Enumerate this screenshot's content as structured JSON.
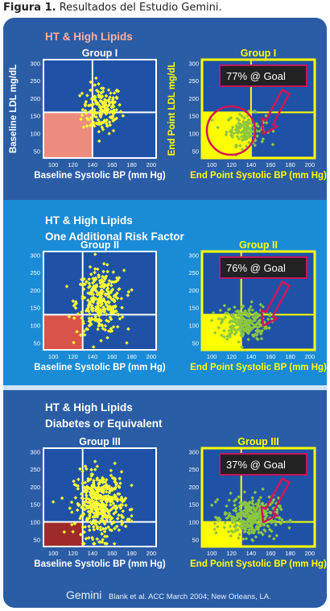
{
  "caption": {
    "label": "Figura 1.",
    "text": "Resultados del Estudio Gemini."
  },
  "colors": {
    "outer_band": "#2b5da6",
    "middle_band": "#1a8bd6",
    "plot_bg": "#1f52a6",
    "point_baseline": "#ffff33",
    "point_endpoint": "#8cc63f",
    "arrow": "#d4145a",
    "goal_box": "#222222",
    "goal_border": "#c2185b",
    "title_group1": "#ffb0a0"
  },
  "sections": [
    {
      "title_lines": [
        "HT & High Lipids"
      ],
      "title_color": "#ffb0a0",
      "goal_region_color": "#ee8b7f",
      "left_group_label": "Group I",
      "right_group_label": "Group   I",
      "left_ylabel": "Baseline LDL mg/dL",
      "right_ylabel": "End Point LDL mg/dL",
      "goal_text": "77% @ Goal",
      "ring": true
    },
    {
      "title_lines": [
        "HT & High Lipids",
        "One Additional Risk Factor"
      ],
      "title_color": "#ffffff",
      "goal_region_color": "#d9534a",
      "left_group_label": "Group II",
      "right_group_label": "Group II",
      "left_ylabel": "",
      "right_ylabel": "",
      "goal_text": "76% @ Goal",
      "ring": false
    },
    {
      "title_lines": [
        "HT & High Lipids",
        "Diabetes or Equivalent"
      ],
      "title_color": "#ffffff",
      "goal_region_color": "#9e2a2b",
      "left_group_label": "Group III",
      "right_group_label": "Group III",
      "left_ylabel": "",
      "right_ylabel": "",
      "goal_text": "37% @ Goal",
      "ring": false
    }
  ],
  "axis": {
    "left_xlabel": "Baseline Systolic BP (mm Hg)",
    "right_xlabel": "End Point Systolic BP (mm Hg)"
  },
  "footer": {
    "brand": "Gemini",
    "citation": "Blank et al. ACC March 2004; New Orleans, LA."
  },
  "chart_data": [
    {
      "type": "scatter",
      "group": "Group I",
      "panel": "baseline",
      "xlim": [
        90,
        205
      ],
      "ylim": [
        30,
        310
      ],
      "xticks": [
        100,
        120,
        140,
        160,
        180,
        200
      ],
      "yticks": [
        50,
        100,
        150,
        200,
        250,
        300
      ],
      "xlabel": "Baseline Systolic BP (mm Hg)",
      "ylabel": "Baseline LDL mg/dL",
      "goal": {
        "x_max": 140,
        "y_max": 160
      },
      "cloud": {
        "center": [
          150,
          170
        ],
        "spread": [
          10,
          35
        ],
        "n": 170
      }
    },
    {
      "type": "scatter",
      "group": "Group I",
      "panel": "endpoint",
      "xlim": [
        90,
        205
      ],
      "ylim": [
        30,
        310
      ],
      "xticks": [
        100,
        120,
        140,
        160,
        180,
        200
      ],
      "yticks": [
        50,
        100,
        150,
        200,
        250,
        300
      ],
      "xlabel": "End Point Systolic BP (mm Hg)",
      "ylabel": "End Point LDL mg/dL",
      "goal": {
        "x_max": 140,
        "y_max": 160
      },
      "goal_pct": 77,
      "cloud": {
        "center": [
          135,
          112
        ],
        "spread": [
          10,
          22
        ],
        "n": 140
      }
    },
    {
      "type": "scatter",
      "group": "Group II",
      "panel": "baseline",
      "xlim": [
        90,
        205
      ],
      "ylim": [
        30,
        310
      ],
      "xticks": [
        100,
        120,
        140,
        160,
        180,
        200
      ],
      "yticks": [
        50,
        100,
        150,
        200,
        250,
        300
      ],
      "xlabel": "Baseline Systolic BP (mm Hg)",
      "goal": {
        "x_max": 130,
        "y_max": 130
      },
      "cloud": {
        "center": [
          148,
          165
        ],
        "spread": [
          12,
          45
        ],
        "n": 300
      }
    },
    {
      "type": "scatter",
      "group": "Group II",
      "panel": "endpoint",
      "xlim": [
        90,
        205
      ],
      "ylim": [
        30,
        310
      ],
      "xticks": [
        100,
        120,
        140,
        160,
        180,
        200
      ],
      "yticks": [
        50,
        100,
        150,
        200,
        250,
        300
      ],
      "xlabel": "End Point Systolic BP (mm Hg)",
      "goal": {
        "x_max": 130,
        "y_max": 130
      },
      "goal_pct": 76,
      "cloud": {
        "center": [
          133,
          108
        ],
        "spread": [
          12,
          25
        ],
        "n": 240
      }
    },
    {
      "type": "scatter",
      "group": "Group III",
      "panel": "baseline",
      "xlim": [
        90,
        205
      ],
      "ylim": [
        30,
        310
      ],
      "xticks": [
        100,
        120,
        140,
        160,
        180,
        200
      ],
      "yticks": [
        50,
        100,
        150,
        200,
        250,
        300
      ],
      "xlabel": "Baseline Systolic BP (mm Hg)",
      "goal": {
        "x_max": 130,
        "y_max": 100
      },
      "cloud": {
        "center": [
          148,
          150
        ],
        "spread": [
          13,
          45
        ],
        "n": 420
      }
    },
    {
      "type": "scatter",
      "group": "Group III",
      "panel": "endpoint",
      "xlim": [
        90,
        205
      ],
      "ylim": [
        30,
        310
      ],
      "xticks": [
        100,
        120,
        140,
        160,
        180,
        200
      ],
      "yticks": [
        50,
        100,
        150,
        200,
        250,
        300
      ],
      "xlabel": "End Point Systolic BP (mm Hg)",
      "goal": {
        "x_max": 130,
        "y_max": 100
      },
      "goal_pct": 37,
      "cloud": {
        "center": [
          140,
          112
        ],
        "spread": [
          14,
          28
        ],
        "n": 360
      }
    }
  ]
}
